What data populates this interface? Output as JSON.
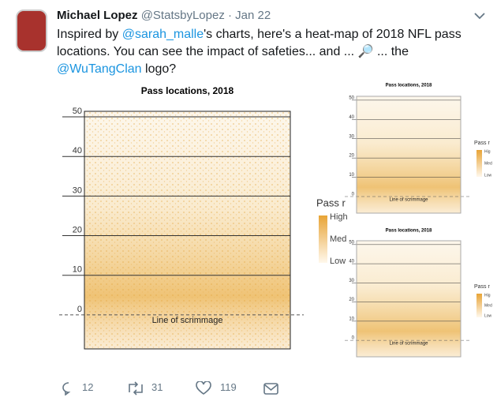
{
  "tweet": {
    "author": "Michael Lopez",
    "handle": "@StatsbyLopez",
    "date": "· Jan 22",
    "text": [
      "Inspired by ",
      "@sarah_malle",
      "'s charts, here's a heat-map of 2018 NFL pass locations. You can see the impact of safeties... and ... ",
      "🔎",
      " ... the ",
      "@WuTangClan",
      " logo?"
    ],
    "replies": 12,
    "retweets": 31,
    "likes": 119
  },
  "charts": [
    {
      "title": "Pass locations, 2018",
      "ylim": [
        -8.6,
        51.4
      ],
      "yticks": [
        0,
        10,
        20,
        30,
        40,
        50
      ],
      "annotation": "Line of scrimmage",
      "legend_title": "Pass r",
      "legend_labels": [
        "High",
        "Med",
        "Low"
      ]
    },
    {
      "title": "Pass locations, 2018",
      "ylim": [
        -8.6,
        52
      ],
      "yticks": [
        0,
        10,
        20,
        30,
        40,
        50
      ],
      "annotation": "Line of scrimmage",
      "legend_title": "Pass r",
      "legend_labels": [
        "Hig",
        "Med",
        "Low"
      ]
    },
    {
      "title": "Pass locations, 2018",
      "ylim": [
        -8.6,
        52
      ],
      "yticks": [
        0,
        10,
        20,
        30,
        40,
        50
      ],
      "annotation": "Line of scrimmage",
      "legend_title": "Pass r",
      "legend_labels": [
        "Hig",
        "Med",
        "Low"
      ]
    }
  ]
}
